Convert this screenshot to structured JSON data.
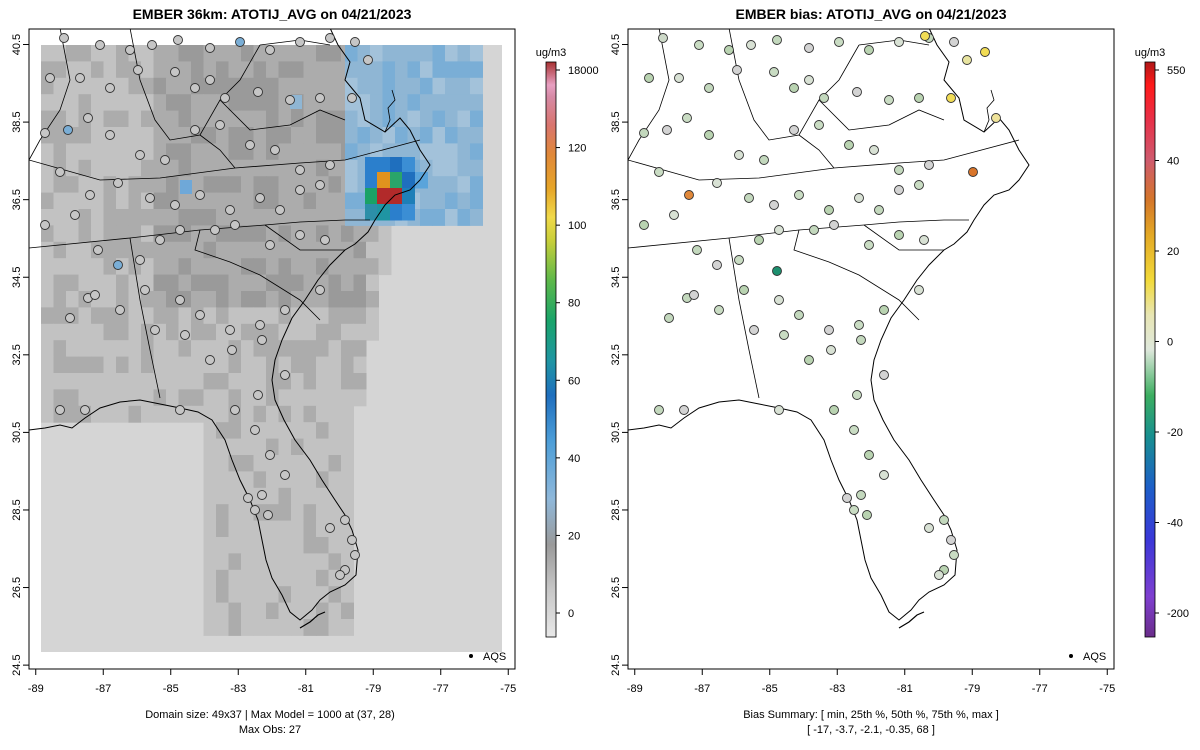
{
  "chart_data": [
    {
      "type": "heatmap",
      "title": "EMBER 36km: ATOTIJ_AVG on 04/21/2023",
      "x_ticks": [
        "-89",
        "-87",
        "-85",
        "-83",
        "-81",
        "-79",
        "-77",
        "-75"
      ],
      "y_ticks": [
        "40.5",
        "38.5",
        "36.5",
        "34.5",
        "32.5",
        "30.5",
        "28.5",
        "26.5",
        "24.5"
      ],
      "xlim": [
        -89.2,
        -74.8
      ],
      "ylim": [
        24.4,
        40.9
      ],
      "colorbar_unit": "ug/m3",
      "colorbar_ticks": [
        "18000",
        "120",
        "100",
        "80",
        "60",
        "40",
        "20",
        "0"
      ],
      "legend_label": "AQS",
      "caption_line1": "Domain size: 49x37 | Max Model = 1000 at (37, 28)",
      "caption_line2": "Max Obs: 27"
    },
    {
      "type": "scatter",
      "title": "EMBER bias: ATOTIJ_AVG on 04/21/2023",
      "x_ticks": [
        "-89",
        "-87",
        "-85",
        "-83",
        "-81",
        "-79",
        "-77",
        "-75"
      ],
      "y_ticks": [
        "40.5",
        "38.5",
        "36.5",
        "34.5",
        "32.5",
        "30.5",
        "28.5",
        "26.5",
        "24.5"
      ],
      "xlim": [
        -89.2,
        -74.8
      ],
      "ylim": [
        24.4,
        40.9
      ],
      "colorbar_unit": "ug/m3",
      "colorbar_ticks": [
        "550",
        "40",
        "20",
        "0",
        "-20",
        "-40",
        "-200"
      ],
      "legend_label": "AQS",
      "caption_line1": "Bias Summary: [ min, 25th %, 50th %, 75th %, max ]",
      "caption_line2": "[ -17,   -3.7,   -2.1,   -0.35,   68 ]",
      "bias_summary": [
        -17,
        -3.7,
        -2.1,
        -0.35,
        68
      ]
    }
  ],
  "colors": {
    "ocean": "#d5d5d5",
    "land_light": "#c2c2c2",
    "land_mid": "#acacac",
    "land_dark": "#9a9a9a",
    "coast_blue": "#8fb6d4",
    "bias_green": "#c9dcc3",
    "hot_red": "#b22a2a"
  }
}
